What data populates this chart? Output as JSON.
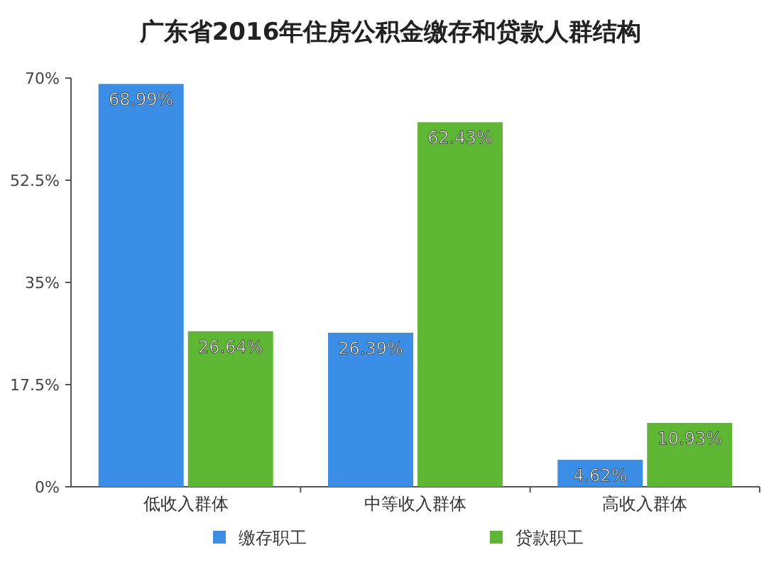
{
  "chart_data": {
    "type": "bar",
    "title": "广东省2016年住房公积金缴存和贷款人群结构",
    "categories": [
      "低收入群体",
      "中等收入群体",
      "高收入群体"
    ],
    "series": [
      {
        "name": "缴存职工",
        "color": "#3a8ee6",
        "values": [
          68.99,
          26.39,
          4.62
        ],
        "value_labels": [
          "68.99%",
          "26.39%",
          "4.62%"
        ]
      },
      {
        "name": "贷款职工",
        "color": "#5db733",
        "values": [
          26.64,
          62.43,
          10.93
        ],
        "value_labels": [
          "26.64%",
          "62.43%",
          "10.93%"
        ]
      }
    ],
    "ylim": [
      0,
      70
    ],
    "yticks": [
      {
        "value": 0,
        "label": "0%"
      },
      {
        "value": 17.5,
        "label": "17.5%"
      },
      {
        "value": 35,
        "label": "35%"
      },
      {
        "value": 52.5,
        "label": "52.5%"
      },
      {
        "value": 70,
        "label": "70%"
      }
    ],
    "legend": "bottom"
  }
}
